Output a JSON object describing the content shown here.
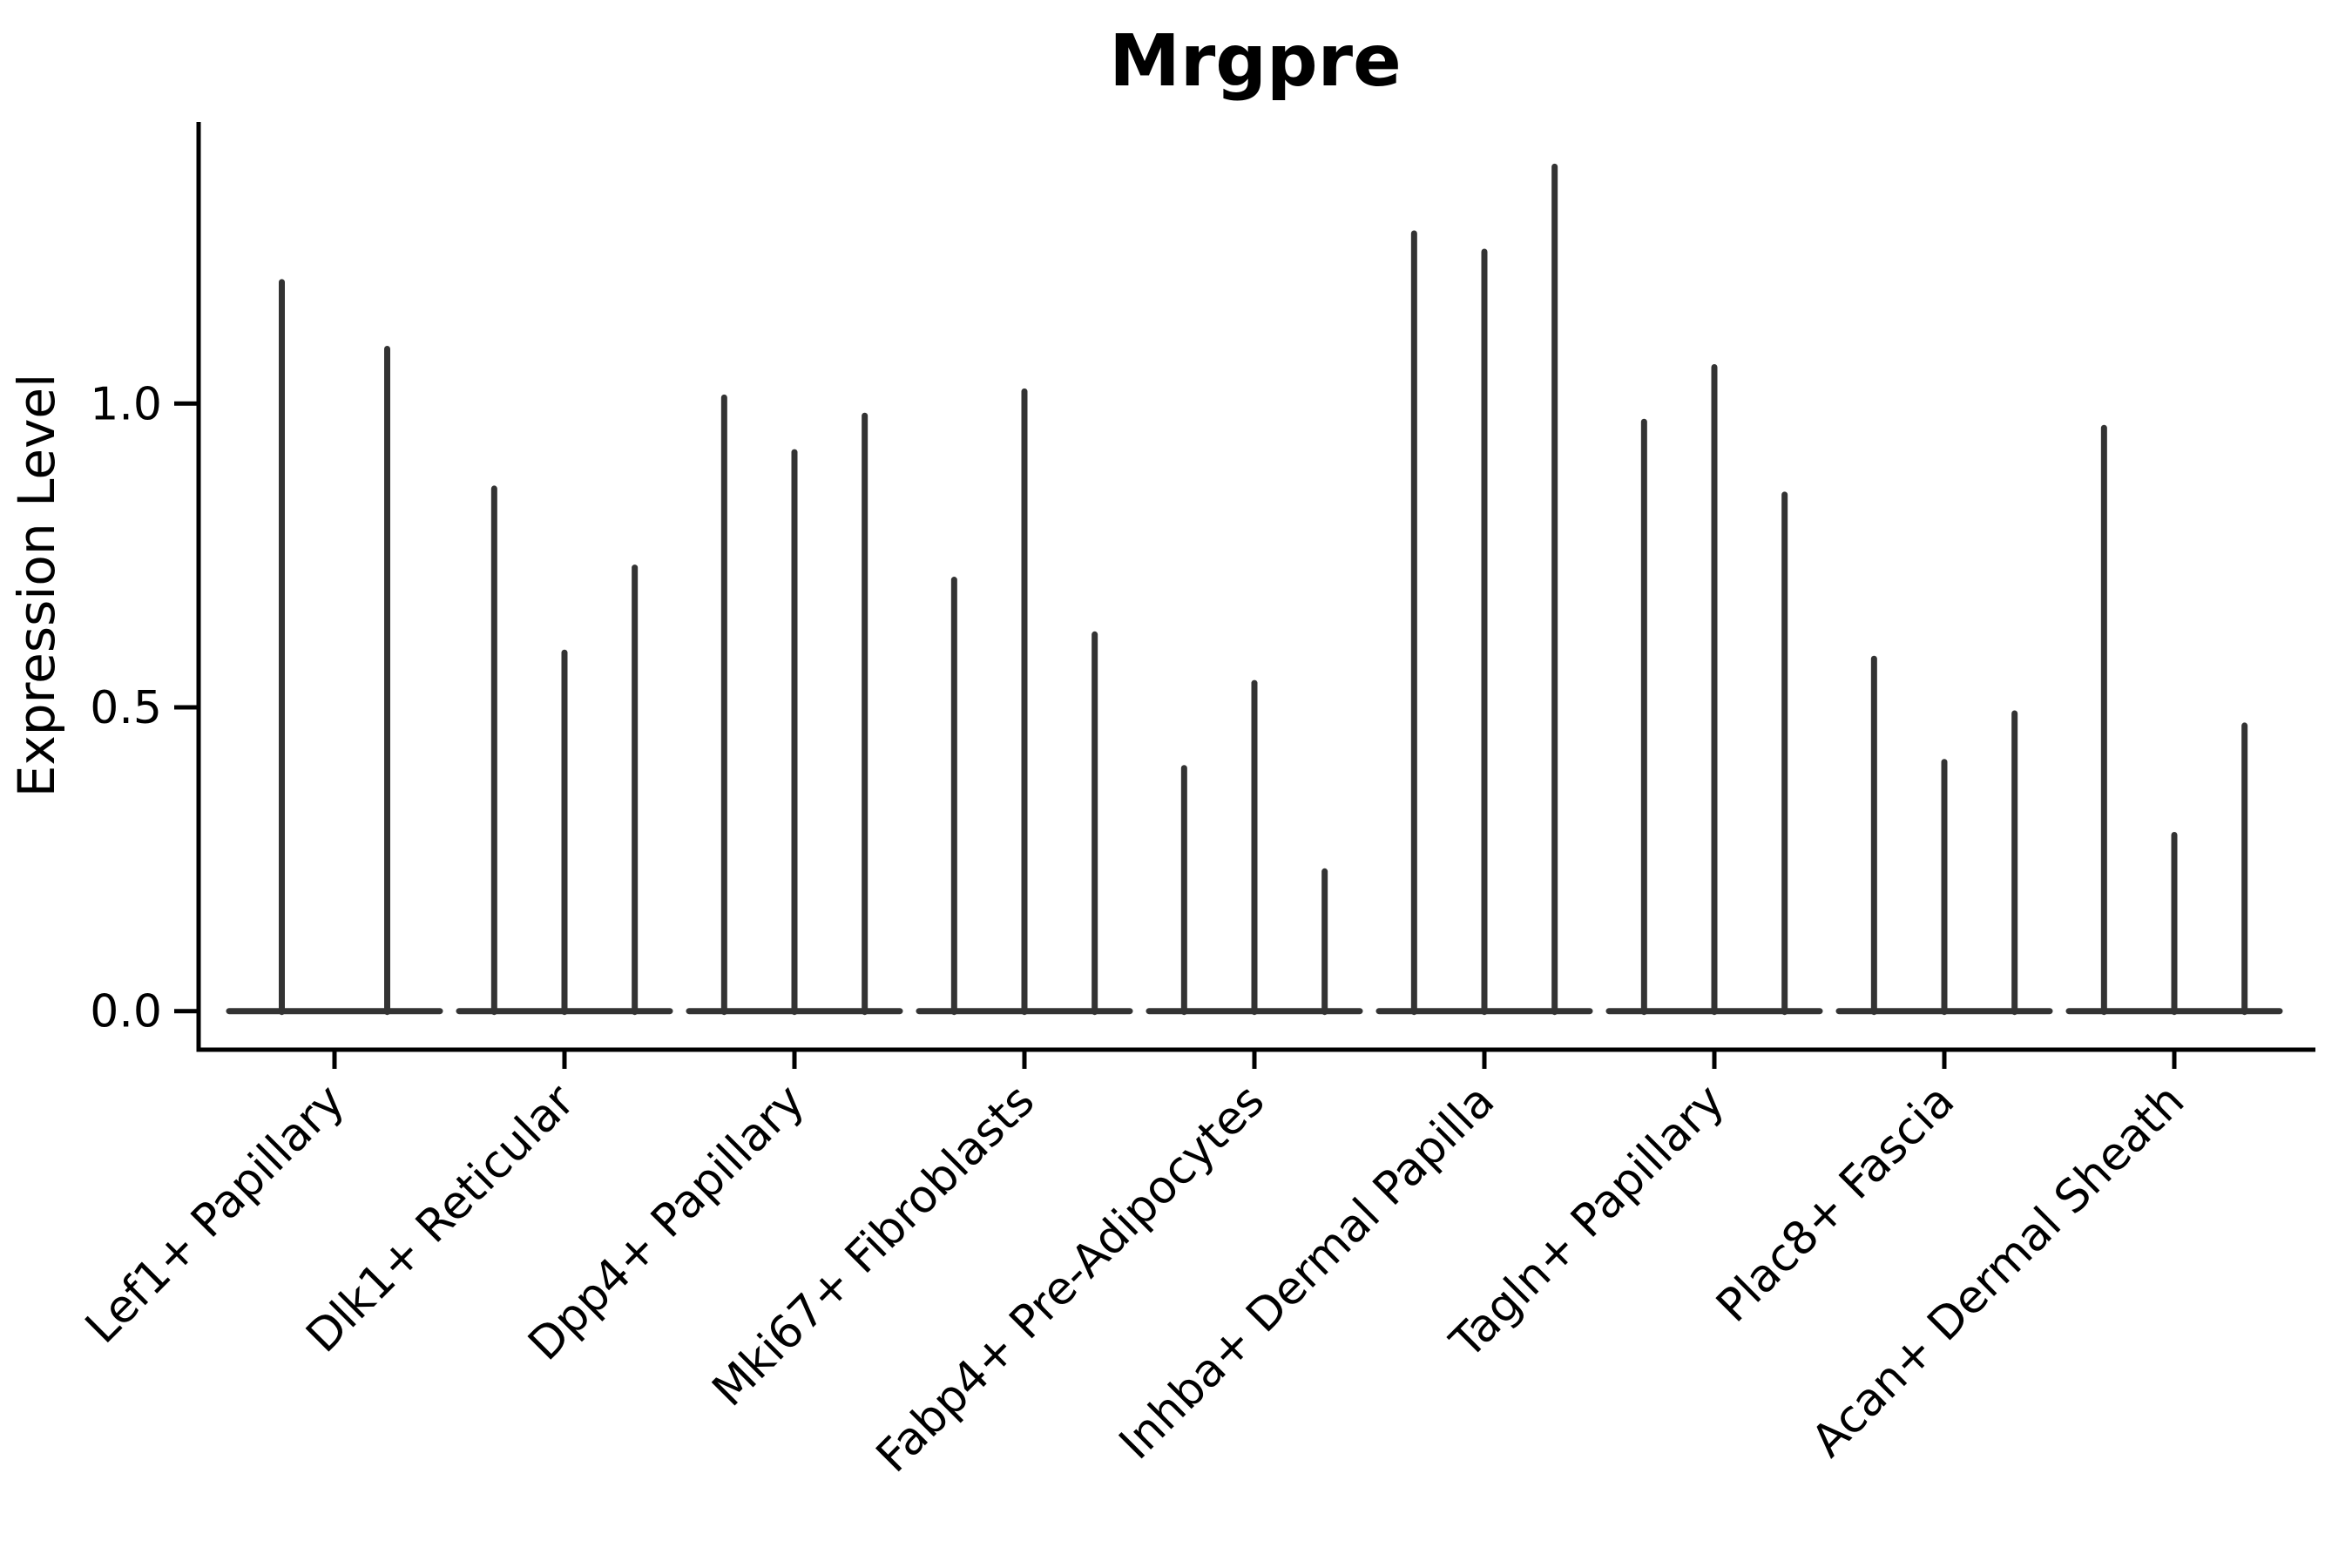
{
  "figure": {
    "background": "#ffffff"
  },
  "chart_data": {
    "type": "violin",
    "title": "Mrgpre",
    "xlabel": "",
    "ylabel": "Expression Level",
    "ytick_labels": [
      "0.0",
      "0.5",
      "1.0"
    ],
    "ytick_values": [
      0.0,
      0.5,
      1.0
    ],
    "ylim": [
      -0.06,
      1.46
    ],
    "grid": false,
    "legend_position": "none",
    "x_tick_rotation_degrees": 45,
    "violin_shape_note": "each violin is an extremely thin spike (max expression) rising from a flat base at y=0",
    "categories": [
      "Lef1+ Papillary",
      "Dlk1+ Reticular",
      "Dpp4+ Papillary",
      "Mki67+ Fibroblasts",
      "Fabp4+ Pre-Adipocytes",
      "Inhba+ Dermal Papilla",
      "Tagln+ Papillary",
      "Plac8+ Fascia",
      "Acan+ Dermal Sheath"
    ],
    "groups": [
      {
        "label": "Lef1+ Papillary",
        "violin_max_values": [
          1.2,
          1.09
        ]
      },
      {
        "label": "Dlk1+ Reticular",
        "violin_max_values": [
          0.86,
          0.59,
          0.73
        ]
      },
      {
        "label": "Dpp4+ Papillary",
        "violin_max_values": [
          1.01,
          0.92,
          0.98
        ]
      },
      {
        "label": "Mki67+ Fibroblasts",
        "violin_max_values": [
          0.71,
          1.02,
          0.62
        ]
      },
      {
        "label": "Fabp4+ Pre-Adipocytes",
        "violin_max_values": [
          0.4,
          0.54,
          0.23
        ]
      },
      {
        "label": "Inhba+ Dermal Papilla",
        "violin_max_values": [
          1.28,
          1.25,
          1.39
        ]
      },
      {
        "label": "Tagln+ Papillary",
        "violin_max_values": [
          0.97,
          1.06,
          0.85
        ]
      },
      {
        "label": "Plac8+ Fascia",
        "violin_max_values": [
          0.58,
          0.41,
          0.49
        ]
      },
      {
        "label": "Acan+ Dermal Sheath",
        "violin_max_values": [
          0.96,
          0.29,
          0.47
        ]
      }
    ],
    "colors": {
      "violin": "#333333",
      "axis": "#000000",
      "text": "#000000",
      "background": "#ffffff"
    }
  }
}
